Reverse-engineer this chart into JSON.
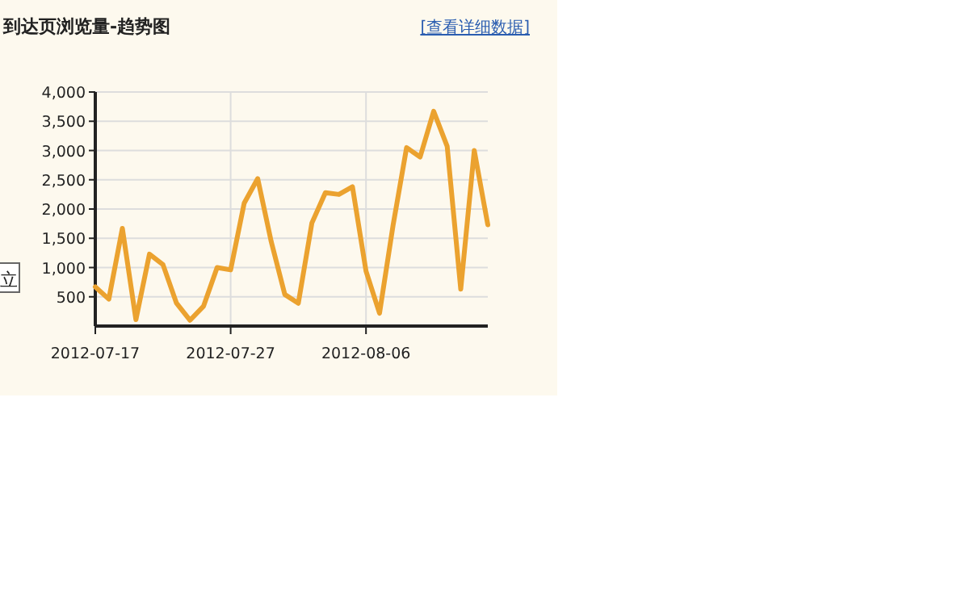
{
  "chart_data": {
    "type": "line",
    "title": "到达页浏览量-趋势图",
    "annotations": [
      "[查看详细数据]",
      "立"
    ],
    "x": [
      "2012-07-17",
      "2012-07-18",
      "2012-07-19",
      "2012-07-20",
      "2012-07-21",
      "2012-07-22",
      "2012-07-23",
      "2012-07-24",
      "2012-07-25",
      "2012-07-26",
      "2012-07-27",
      "2012-07-28",
      "2012-07-29",
      "2012-07-30",
      "2012-07-31",
      "2012-08-01",
      "2012-08-02",
      "2012-08-03",
      "2012-08-04",
      "2012-08-05",
      "2012-08-06",
      "2012-08-07",
      "2012-08-08",
      "2012-08-09",
      "2012-08-10",
      "2012-08-11",
      "2012-08-12",
      "2012-08-13",
      "2012-08-14",
      "2012-08-15"
    ],
    "series": [
      {
        "color": "#eba22f",
        "values": [
          670,
          460,
          1670,
          110,
          1230,
          1050,
          390,
          100,
          340,
          1000,
          960,
          2100,
          2520,
          1440,
          540,
          390,
          1760,
          2280,
          2250,
          2380,
          940,
          220,
          1720,
          3050,
          2890,
          3670,
          3070,
          630,
          3000,
          1730
        ]
      }
    ],
    "xlim": [
      "2012-07-17",
      "2012-08-15"
    ],
    "xticks": [
      "2012-07-17",
      "2012-07-27",
      "2012-08-06"
    ],
    "ylim": [
      0,
      4000
    ],
    "yticks": [
      {
        "value": 500,
        "label": "500"
      },
      {
        "value": 1000,
        "label": "1,000"
      },
      {
        "value": 1500,
        "label": "1,500"
      },
      {
        "value": 2000,
        "label": "2,000"
      },
      {
        "value": 2500,
        "label": "2,500"
      },
      {
        "value": 3000,
        "label": "3,000"
      },
      {
        "value": 3500,
        "label": "3,500"
      },
      {
        "value": 4000,
        "label": "4,000"
      }
    ],
    "grid": true,
    "marker": "none",
    "line_style": "solid"
  }
}
